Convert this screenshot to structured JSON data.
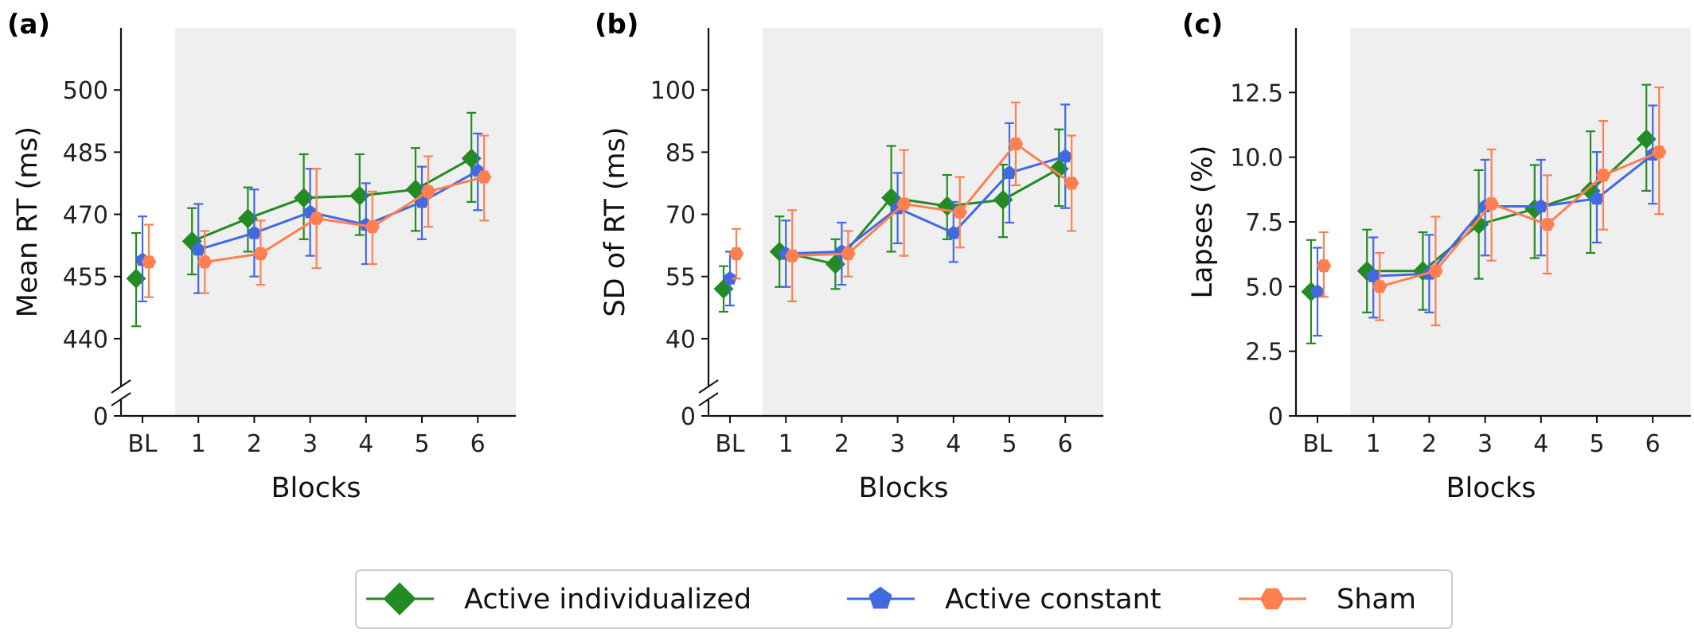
{
  "chart_data": [
    {
      "panel": "(a)",
      "type": "line",
      "ylabel": "Mean RT (ms)",
      "xlabel": "Blocks",
      "categories": [
        "BL",
        "1",
        "2",
        "3",
        "4",
        "5",
        "6"
      ],
      "yticks": [
        "0",
        "440",
        "455",
        "470",
        "485",
        "500"
      ],
      "ylim_upper_segment": [
        430,
        515
      ],
      "axis_break": true,
      "series": [
        {
          "name": "Active individualized",
          "color": "#228B22",
          "marker": "diamond",
          "values": [
            454.5,
            463.5,
            469,
            474,
            474.5,
            476,
            483.5
          ],
          "err_low": [
            443,
            455.5,
            461,
            464,
            465,
            466,
            473
          ],
          "err_high": [
            465.5,
            471.5,
            476.5,
            484.5,
            484.5,
            486,
            494.5
          ]
        },
        {
          "name": "Active constant",
          "color": "#4169E1",
          "marker": "pentagon",
          "values": [
            459,
            461.5,
            465.5,
            470.5,
            467.5,
            473,
            480.5
          ],
          "err_low": [
            449,
            451,
            455,
            460,
            458,
            464,
            471
          ],
          "err_high": [
            469.5,
            472.5,
            476,
            481,
            477.5,
            481.5,
            489.5
          ]
        },
        {
          "name": "Sham",
          "color": "#FF7F50",
          "marker": "hexagon",
          "values": [
            458.5,
            458.5,
            460.5,
            469,
            467,
            475.5,
            479
          ],
          "err_low": [
            450,
            451,
            453,
            457,
            458,
            467,
            468.5
          ],
          "err_high": [
            467.5,
            466,
            468.5,
            481,
            475.5,
            484,
            489
          ]
        }
      ]
    },
    {
      "panel": "(b)",
      "type": "line",
      "ylabel": "SD of RT (ms)",
      "xlabel": "Blocks",
      "categories": [
        "BL",
        "1",
        "2",
        "3",
        "4",
        "5",
        "6"
      ],
      "yticks": [
        "0",
        "40",
        "55",
        "70",
        "85",
        "100"
      ],
      "ylim_upper_segment": [
        30,
        115
      ],
      "axis_break": true,
      "series": [
        {
          "name": "Active individualized",
          "color": "#228B22",
          "marker": "diamond",
          "values": [
            52,
            61,
            58,
            74,
            72,
            73.5,
            81
          ],
          "err_low": [
            46.5,
            52.5,
            52,
            61,
            64,
            64.5,
            72
          ],
          "err_high": [
            57.5,
            69.5,
            64,
            86.5,
            79.5,
            82,
            90.5
          ]
        },
        {
          "name": "Active constant",
          "color": "#4169E1",
          "marker": "pentagon",
          "values": [
            54.5,
            60.5,
            61,
            71.5,
            65.5,
            80,
            84
          ],
          "err_low": [
            48,
            52.5,
            53,
            63,
            58.5,
            68,
            71.5
          ],
          "err_high": [
            61,
            68.5,
            68,
            80,
            73,
            92,
            96.5
          ]
        },
        {
          "name": "Sham",
          "color": "#FF7F50",
          "marker": "hexagon",
          "values": [
            60.5,
            60,
            60.5,
            72.5,
            70.5,
            87,
            77.5
          ],
          "err_low": [
            54.5,
            49,
            55,
            60,
            62,
            77,
            66
          ],
          "err_high": [
            66.5,
            71,
            66,
            85.5,
            79,
            97,
            89
          ]
        }
      ]
    },
    {
      "panel": "(c)",
      "type": "line",
      "ylabel": "Lapses (%)",
      "xlabel": "Blocks",
      "categories": [
        "BL",
        "1",
        "2",
        "3",
        "4",
        "5",
        "6"
      ],
      "yticks": [
        "0",
        "2.5",
        "5.0",
        "7.5",
        "10.0",
        "12.5"
      ],
      "ylim": [
        0,
        15
      ],
      "axis_break": false,
      "series": [
        {
          "name": "Active individualized",
          "color": "#228B22",
          "marker": "diamond",
          "values": [
            4.8,
            5.6,
            5.6,
            7.4,
            8,
            8.7,
            10.7
          ],
          "err_low": [
            2.8,
            4,
            4.1,
            5.3,
            6.1,
            6.3,
            8.7
          ],
          "err_high": [
            6.8,
            7.2,
            7.1,
            9.5,
            9.7,
            11,
            12.8
          ]
        },
        {
          "name": "Active constant",
          "color": "#4169E1",
          "marker": "pentagon",
          "values": [
            4.8,
            5.4,
            5.5,
            8.1,
            8.1,
            8.4,
            10.1
          ],
          "err_low": [
            3.1,
            3.8,
            4,
            6.2,
            6.2,
            6.7,
            8.2
          ],
          "err_high": [
            6.5,
            6.9,
            7,
            9.9,
            9.9,
            10.2,
            12
          ]
        },
        {
          "name": "Sham",
          "color": "#FF7F50",
          "marker": "hexagon",
          "values": [
            5.8,
            5,
            5.6,
            8.2,
            7.4,
            9.3,
            10.2
          ],
          "err_low": [
            4.6,
            3.7,
            3.5,
            6,
            5.5,
            7.2,
            7.8
          ],
          "err_high": [
            7.1,
            6.3,
            7.7,
            10.3,
            9.3,
            11.4,
            12.7
          ]
        }
      ]
    }
  ],
  "legend": {
    "items": [
      {
        "label": "Active individualized",
        "color": "#228B22",
        "marker": "diamond"
      },
      {
        "label": "Active constant",
        "color": "#4169E1",
        "marker": "pentagon"
      },
      {
        "label": "Sham",
        "color": "#FF7F50",
        "marker": "hexagon"
      }
    ]
  }
}
